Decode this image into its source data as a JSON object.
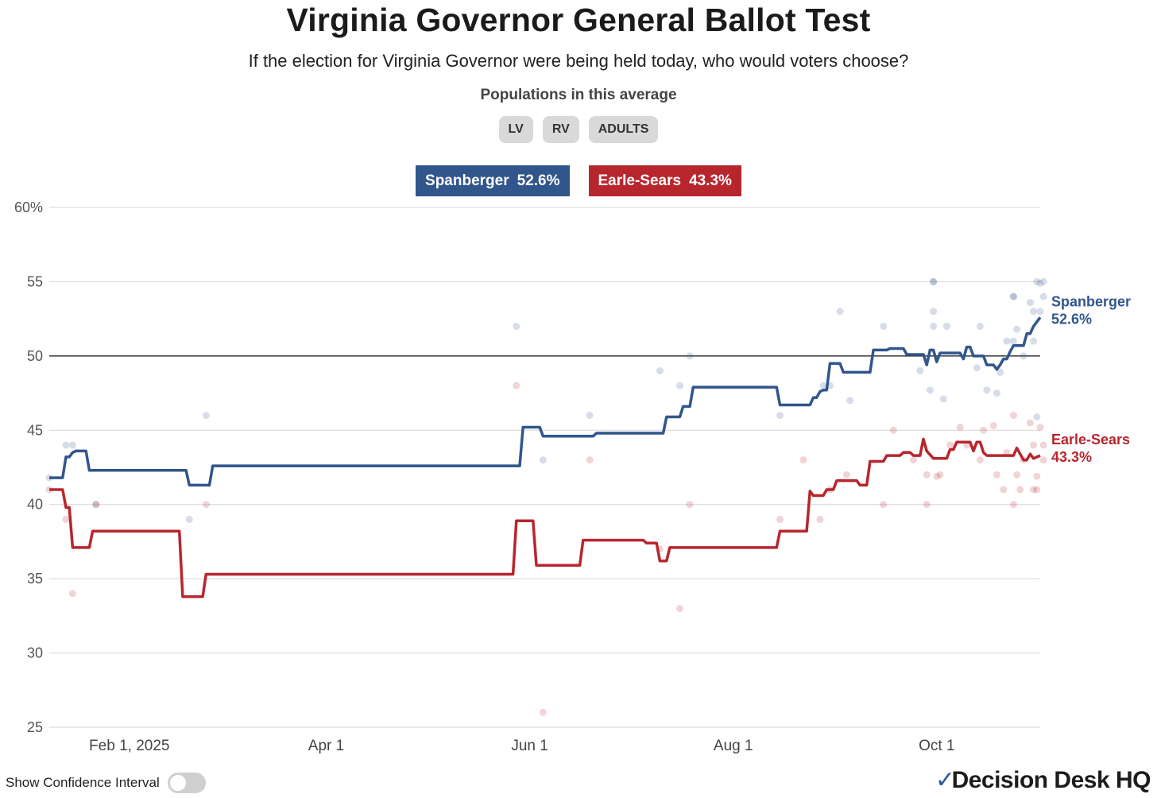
{
  "title": "Virginia Governor General Ballot Test",
  "subtitle": "If the election for Virginia Governor were being held today, who would voters choose?",
  "populations_label": "Populations in this average",
  "populations": [
    "LV",
    "RV",
    "ADULTS"
  ],
  "legend": [
    {
      "name": "Spanberger",
      "value": "52.6%",
      "color": "#31568c"
    },
    {
      "name": "Earle-Sears",
      "value": "43.3%",
      "color": "#b8262d"
    }
  ],
  "confidence_toggle_label": "Show Confidence Interval",
  "logo_text": "Decision Desk HQ",
  "chart_data": {
    "type": "line",
    "x_axis": {
      "type": "date",
      "range": [
        "2025-01-08",
        "2025-11-01"
      ],
      "ticks": [
        {
          "date": "2025-02-01",
          "label": "Feb 1, 2025"
        },
        {
          "date": "2025-04-01",
          "label": "Apr 1"
        },
        {
          "date": "2025-06-01",
          "label": "Jun 1"
        },
        {
          "date": "2025-08-01",
          "label": "Aug 1"
        },
        {
          "date": "2025-10-01",
          "label": "Oct 1"
        }
      ]
    },
    "y_axis": {
      "range": [
        25,
        60
      ],
      "ticks": [
        {
          "value": 25,
          "label": "25"
        },
        {
          "value": 30,
          "label": "30"
        },
        {
          "value": 35,
          "label": "35"
        },
        {
          "value": 40,
          "label": "40"
        },
        {
          "value": 45,
          "label": "45"
        },
        {
          "value": 50,
          "label": "50"
        },
        {
          "value": 55,
          "label": "55"
        },
        {
          "value": 60,
          "label": "60%"
        }
      ],
      "reference_line": 50,
      "grid": true
    },
    "series": [
      {
        "name": "Spanberger",
        "end_label": "52.6%",
        "color": "#31568c",
        "line": [
          [
            "2025-01-08",
            41.8
          ],
          [
            "2025-01-12",
            41.8
          ],
          [
            "2025-01-13",
            43.2
          ],
          [
            "2025-01-14",
            43.2
          ],
          [
            "2025-01-15",
            43.5
          ],
          [
            "2025-01-16",
            43.6
          ],
          [
            "2025-01-19",
            43.6
          ],
          [
            "2025-01-20",
            42.3
          ],
          [
            "2025-02-18",
            42.3
          ],
          [
            "2025-02-19",
            41.3
          ],
          [
            "2025-02-25",
            41.3
          ],
          [
            "2025-02-26",
            42.6
          ],
          [
            "2025-05-29",
            42.6
          ],
          [
            "2025-05-30",
            45.2
          ],
          [
            "2025-06-04",
            45.2
          ],
          [
            "2025-06-05",
            44.6
          ],
          [
            "2025-06-20",
            44.6
          ],
          [
            "2025-06-21",
            44.8
          ],
          [
            "2025-07-11",
            44.8
          ],
          [
            "2025-07-12",
            45.9
          ],
          [
            "2025-07-16",
            45.9
          ],
          [
            "2025-07-17",
            46.6
          ],
          [
            "2025-07-19",
            46.6
          ],
          [
            "2025-07-20",
            47.9
          ],
          [
            "2025-08-14",
            47.9
          ],
          [
            "2025-08-15",
            46.7
          ],
          [
            "2025-08-24",
            46.7
          ],
          [
            "2025-08-25",
            47.2
          ],
          [
            "2025-08-26",
            47.2
          ],
          [
            "2025-08-27",
            47.6
          ],
          [
            "2025-08-28",
            47.7
          ],
          [
            "2025-08-29",
            47.7
          ],
          [
            "2025-08-30",
            49.5
          ],
          [
            "2025-09-02",
            49.5
          ],
          [
            "2025-09-03",
            48.9
          ],
          [
            "2025-09-11",
            48.9
          ],
          [
            "2025-09-12",
            50.4
          ],
          [
            "2025-09-16",
            50.4
          ],
          [
            "2025-09-17",
            50.5
          ],
          [
            "2025-09-21",
            50.5
          ],
          [
            "2025-09-22",
            50.1
          ],
          [
            "2025-09-27",
            50.1
          ],
          [
            "2025-09-28",
            49.4
          ],
          [
            "2025-09-29",
            50.4
          ],
          [
            "2025-09-30",
            50.4
          ],
          [
            "2025-10-01",
            49.6
          ],
          [
            "2025-10-02",
            50.2
          ],
          [
            "2025-10-08",
            50.2
          ],
          [
            "2025-10-09",
            49.8
          ],
          [
            "2025-10-10",
            50.6
          ],
          [
            "2025-10-11",
            50.6
          ],
          [
            "2025-10-12",
            50.0
          ],
          [
            "2025-10-15",
            50.0
          ],
          [
            "2025-10-16",
            49.4
          ],
          [
            "2025-10-18",
            49.4
          ],
          [
            "2025-10-19",
            49.1
          ],
          [
            "2025-10-20",
            49.4
          ],
          [
            "2025-10-21",
            49.8
          ],
          [
            "2025-10-22",
            49.8
          ],
          [
            "2025-10-23",
            50.3
          ],
          [
            "2025-10-24",
            50.7
          ],
          [
            "2025-10-27",
            50.7
          ],
          [
            "2025-10-28",
            51.5
          ],
          [
            "2025-10-29",
            51.5
          ],
          [
            "2025-10-30",
            52.0
          ],
          [
            "2025-10-31",
            52.3
          ],
          [
            "2025-11-01",
            52.6
          ]
        ],
        "polls": [
          [
            "2025-01-08",
            41.8
          ],
          [
            "2025-01-13",
            44.0
          ],
          [
            "2025-01-15",
            44.0
          ],
          [
            "2025-01-22",
            40.0
          ],
          [
            "2025-02-19",
            39.0
          ],
          [
            "2025-02-24",
            46.0
          ],
          [
            "2025-05-28",
            52.0
          ],
          [
            "2025-06-05",
            43.0
          ],
          [
            "2025-06-19",
            46.0
          ],
          [
            "2025-07-10",
            49.0
          ],
          [
            "2025-07-16",
            48.0
          ],
          [
            "2025-07-19",
            50.0
          ],
          [
            "2025-08-15",
            46.0
          ],
          [
            "2025-08-28",
            48.0
          ],
          [
            "2025-08-30",
            48.0
          ],
          [
            "2025-09-02",
            53.0
          ],
          [
            "2025-09-05",
            47.0
          ],
          [
            "2025-09-15",
            52.0
          ],
          [
            "2025-09-26",
            49.0
          ],
          [
            "2025-09-30",
            55.0
          ],
          [
            "2025-09-30",
            53.0
          ],
          [
            "2025-09-30",
            52.0
          ],
          [
            "2025-09-29",
            47.7
          ],
          [
            "2025-10-03",
            47.1
          ],
          [
            "2025-10-04",
            52.0
          ],
          [
            "2025-10-14",
            52.0
          ],
          [
            "2025-10-13",
            49.2
          ],
          [
            "2025-10-16",
            47.7
          ],
          [
            "2025-10-19",
            47.5
          ],
          [
            "2025-10-20",
            48.9
          ],
          [
            "2025-10-22",
            51.0
          ],
          [
            "2025-10-24",
            54.0
          ],
          [
            "2025-10-24",
            51.0
          ],
          [
            "2025-10-25",
            51.8
          ],
          [
            "2025-10-27",
            50.0
          ],
          [
            "2025-10-29",
            53.6
          ],
          [
            "2025-10-30",
            53.0
          ],
          [
            "2025-10-30",
            51.0
          ],
          [
            "2025-10-31",
            55.0
          ],
          [
            "2025-10-31",
            45.9
          ],
          [
            "2025-11-01",
            53.0
          ],
          [
            "2025-11-02",
            54.0
          ],
          [
            "2025-11-02",
            55.0
          ],
          [
            "2025-10-24",
            54.0
          ],
          [
            "2025-09-30",
            55.0
          ],
          [
            "2025-11-01",
            54.9
          ]
        ]
      },
      {
        "name": "Earle-Sears",
        "end_label": "43.3%",
        "color": "#b8262d",
        "line": [
          [
            "2025-01-08",
            41.0
          ],
          [
            "2025-01-12",
            41.0
          ],
          [
            "2025-01-13",
            39.8
          ],
          [
            "2025-01-14",
            39.8
          ],
          [
            "2025-01-15",
            37.1
          ],
          [
            "2025-01-20",
            37.1
          ],
          [
            "2025-01-21",
            38.2
          ],
          [
            "2025-02-16",
            38.2
          ],
          [
            "2025-02-17",
            33.8
          ],
          [
            "2025-02-23",
            33.8
          ],
          [
            "2025-02-24",
            35.3
          ],
          [
            "2025-05-27",
            35.3
          ],
          [
            "2025-05-28",
            38.9
          ],
          [
            "2025-06-02",
            38.9
          ],
          [
            "2025-06-03",
            35.9
          ],
          [
            "2025-06-16",
            35.9
          ],
          [
            "2025-06-17",
            37.6
          ],
          [
            "2025-07-01",
            37.6
          ],
          [
            "2025-07-02",
            37.6
          ],
          [
            "2025-07-05",
            37.6
          ],
          [
            "2025-07-06",
            37.4
          ],
          [
            "2025-07-09",
            37.4
          ],
          [
            "2025-07-10",
            36.2
          ],
          [
            "2025-07-12",
            36.2
          ],
          [
            "2025-07-13",
            37.1
          ],
          [
            "2025-08-14",
            37.1
          ],
          [
            "2025-08-15",
            38.2
          ],
          [
            "2025-08-23",
            38.2
          ],
          [
            "2025-08-24",
            40.9
          ],
          [
            "2025-08-25",
            40.6
          ],
          [
            "2025-08-28",
            40.6
          ],
          [
            "2025-08-29",
            41.0
          ],
          [
            "2025-08-31",
            41.0
          ],
          [
            "2025-09-01",
            41.6
          ],
          [
            "2025-09-07",
            41.6
          ],
          [
            "2025-09-08",
            41.3
          ],
          [
            "2025-09-10",
            41.3
          ],
          [
            "2025-09-11",
            42.9
          ],
          [
            "2025-09-15",
            42.9
          ],
          [
            "2025-09-16",
            43.3
          ],
          [
            "2025-09-20",
            43.3
          ],
          [
            "2025-09-21",
            43.5
          ],
          [
            "2025-09-23",
            43.5
          ],
          [
            "2025-09-24",
            43.3
          ],
          [
            "2025-09-26",
            43.3
          ],
          [
            "2025-09-27",
            44.4
          ],
          [
            "2025-09-28",
            43.6
          ],
          [
            "2025-09-30",
            43.1
          ],
          [
            "2025-10-04",
            43.1
          ],
          [
            "2025-10-05",
            43.7
          ],
          [
            "2025-10-06",
            43.7
          ],
          [
            "2025-10-07",
            44.2
          ],
          [
            "2025-10-11",
            44.2
          ],
          [
            "2025-10-12",
            43.6
          ],
          [
            "2025-10-13",
            44.2
          ],
          [
            "2025-10-14",
            44.2
          ],
          [
            "2025-10-15",
            43.5
          ],
          [
            "2025-10-16",
            43.3
          ],
          [
            "2025-10-24",
            43.3
          ],
          [
            "2025-10-25",
            43.8
          ],
          [
            "2025-10-27",
            43.0
          ],
          [
            "2025-10-28",
            43.0
          ],
          [
            "2025-10-29",
            43.4
          ],
          [
            "2025-10-30",
            43.1
          ],
          [
            "2025-11-01",
            43.3
          ]
        ],
        "polls": [
          [
            "2025-01-08",
            41.0
          ],
          [
            "2025-01-13",
            39.0
          ],
          [
            "2025-01-15",
            34.0
          ],
          [
            "2025-01-22",
            40.0
          ],
          [
            "2025-02-24",
            40.0
          ],
          [
            "2025-05-28",
            48.0
          ],
          [
            "2025-06-05",
            26.0
          ],
          [
            "2025-06-19",
            43.0
          ],
          [
            "2025-07-10",
            37.0
          ],
          [
            "2025-07-16",
            33.0
          ],
          [
            "2025-07-19",
            40.0
          ],
          [
            "2025-08-15",
            39.0
          ],
          [
            "2025-08-22",
            43.0
          ],
          [
            "2025-08-27",
            39.0
          ],
          [
            "2025-08-30",
            41.0
          ],
          [
            "2025-09-04",
            42.0
          ],
          [
            "2025-09-15",
            40.0
          ],
          [
            "2025-09-18",
            45.0
          ],
          [
            "2025-09-24",
            43.0
          ],
          [
            "2025-09-28",
            42.0
          ],
          [
            "2025-09-28",
            40.0
          ],
          [
            "2025-10-01",
            41.9
          ],
          [
            "2025-10-02",
            42.0
          ],
          [
            "2025-10-05",
            44.0
          ],
          [
            "2025-10-08",
            45.2
          ],
          [
            "2025-10-10",
            44.0
          ],
          [
            "2025-10-14",
            43.0
          ],
          [
            "2025-10-15",
            45.0
          ],
          [
            "2025-10-18",
            45.3
          ],
          [
            "2025-10-19",
            42.0
          ],
          [
            "2025-10-21",
            41.0
          ],
          [
            "2025-10-22",
            43.5
          ],
          [
            "2025-10-24",
            40.0
          ],
          [
            "2025-10-25",
            42.0
          ],
          [
            "2025-10-26",
            41.0
          ],
          [
            "2025-10-27",
            43.0
          ],
          [
            "2025-10-29",
            45.5
          ],
          [
            "2025-10-30",
            41.0
          ],
          [
            "2025-10-31",
            41.9
          ],
          [
            "2025-11-01",
            45.2
          ],
          [
            "2025-11-02",
            44.0
          ],
          [
            "2025-11-02",
            43.0
          ],
          [
            "2025-10-31",
            41.0
          ],
          [
            "2025-10-24",
            46.0
          ],
          [
            "2025-10-30",
            44.0
          ]
        ]
      }
    ]
  }
}
